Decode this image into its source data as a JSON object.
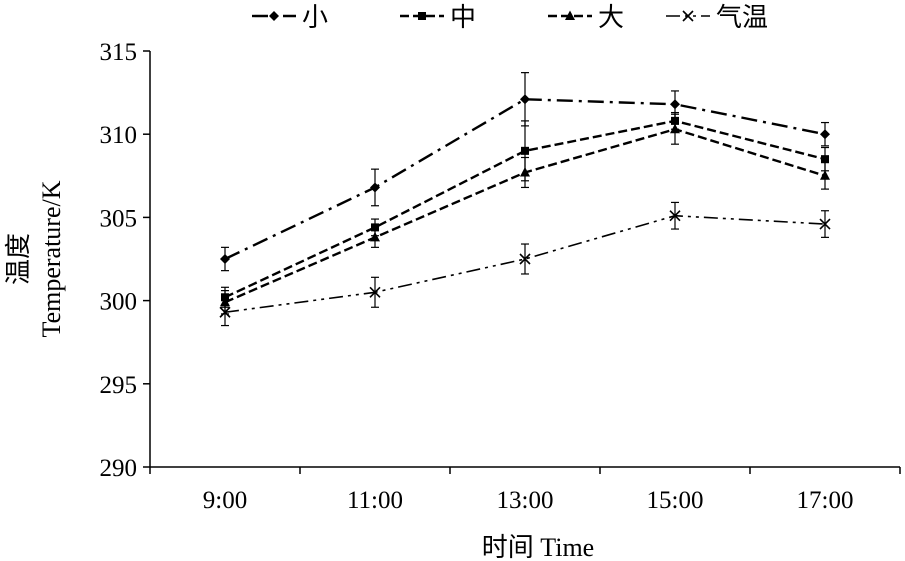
{
  "chart_data": {
    "type": "line",
    "title": "",
    "xlabel": "时间 Time",
    "ylabel_cn": "温度",
    "ylabel": "Temperature/K",
    "categories": [
      "9:00",
      "11:00",
      "13:00",
      "15:00",
      "17:00"
    ],
    "ylim": [
      290,
      315
    ],
    "yticks": [
      "290",
      "295",
      "300",
      "305",
      "310",
      "315"
    ],
    "grid": false,
    "legend_position": "top",
    "series": [
      {
        "name": "小",
        "marker": "diamond",
        "dash": "dash-dot",
        "color": "#000000",
        "values": [
          302.5,
          306.8,
          312.1,
          311.8,
          310.0
        ],
        "errors": [
          0.7,
          1.1,
          1.6,
          0.8,
          0.7
        ]
      },
      {
        "name": "中",
        "marker": "square",
        "dash": "dash",
        "color": "#000000",
        "values": [
          300.2,
          304.4,
          309.0,
          310.8,
          308.5
        ],
        "errors": [
          0.6,
          0.5,
          1.8,
          0.5,
          0.7
        ]
      },
      {
        "name": "大",
        "marker": "triangle",
        "dash": "dash",
        "color": "#000000",
        "values": [
          299.9,
          303.8,
          307.7,
          310.3,
          307.5
        ],
        "errors": [
          0.7,
          0.6,
          0.9,
          0.9,
          0.8
        ]
      },
      {
        "name": "气温",
        "marker": "x",
        "dash": "dash-dot-dot",
        "color": "#000000",
        "values": [
          299.3,
          300.5,
          302.5,
          305.1,
          304.6
        ],
        "errors": [
          0.8,
          0.9,
          0.9,
          0.8,
          0.8
        ]
      }
    ]
  }
}
